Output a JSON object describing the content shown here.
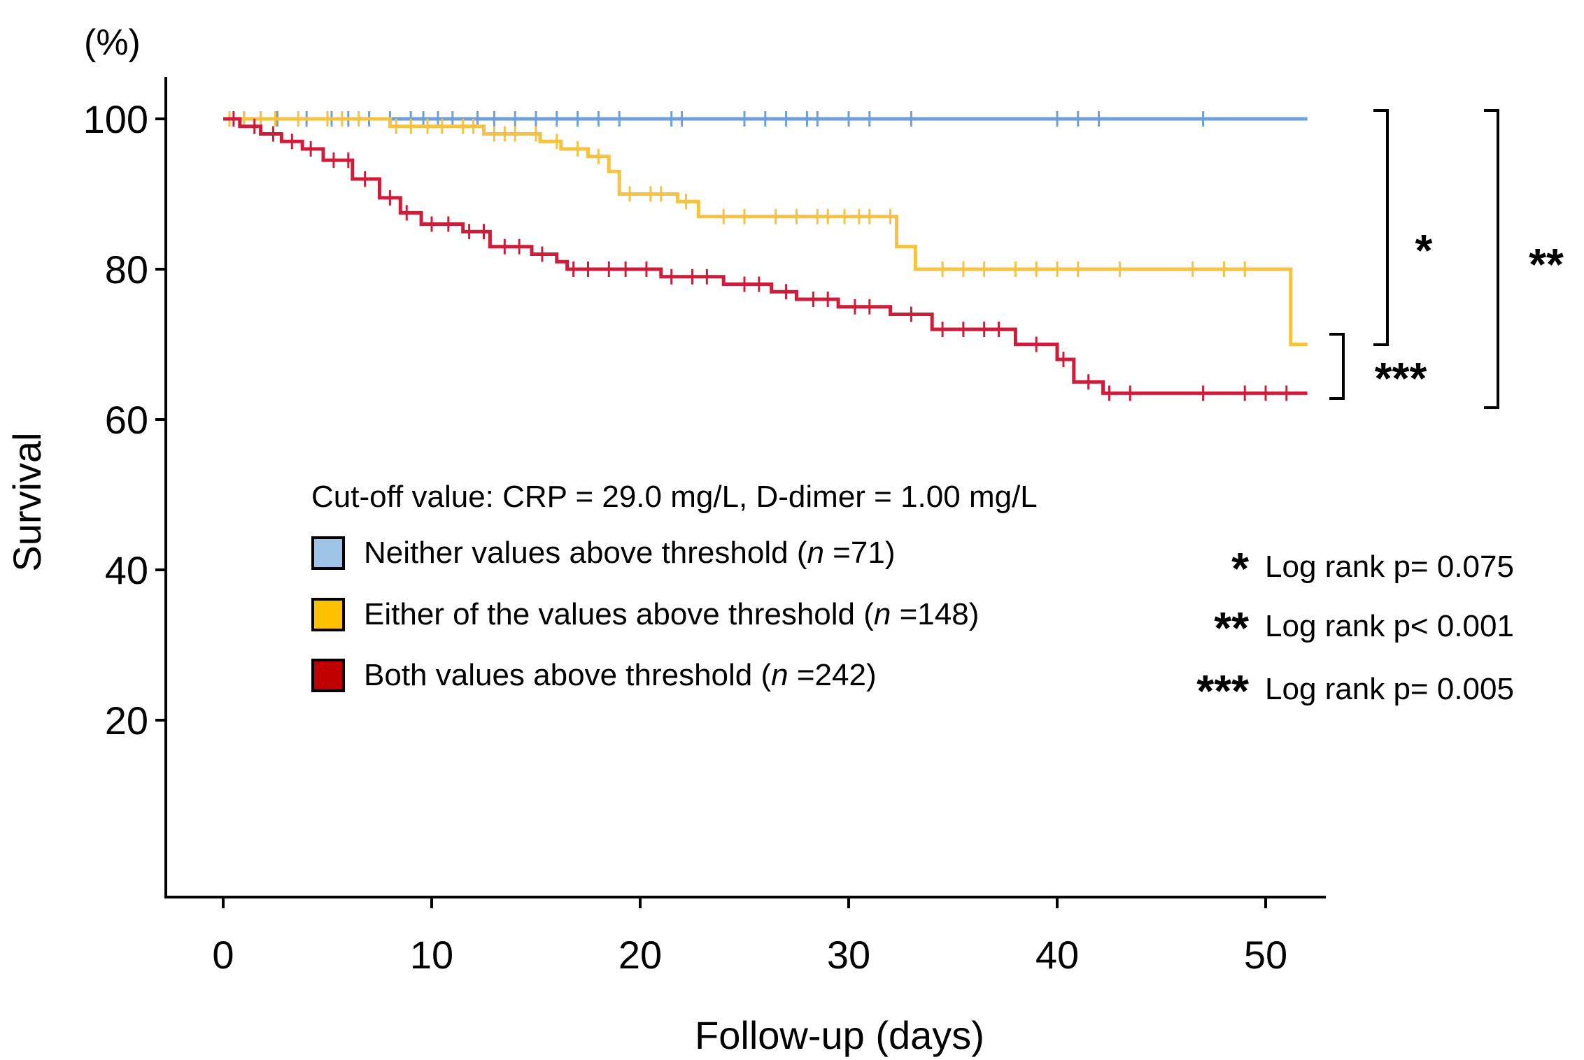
{
  "chart_data": {
    "type": "line",
    "title": "",
    "xlabel": "Follow-up (days)",
    "ylabel": "Survival",
    "y_unit": "(%)",
    "xlim": [
      0,
      52
    ],
    "ylim": [
      0,
      105
    ],
    "x_ticks": [
      {
        "value": 0,
        "label": "0"
      },
      {
        "value": 10,
        "label": "10"
      },
      {
        "value": 20,
        "label": "20"
      },
      {
        "value": 30,
        "label": "30"
      },
      {
        "value": 40,
        "label": "40"
      },
      {
        "value": 50,
        "label": "50"
      }
    ],
    "y_ticks": [
      {
        "value": 20,
        "label": "20"
      },
      {
        "value": 40,
        "label": "40"
      },
      {
        "value": 60,
        "label": "60"
      },
      {
        "value": 80,
        "label": "80"
      },
      {
        "value": 100,
        "label": "100"
      }
    ],
    "series": [
      {
        "name": "Neither values above threshold",
        "n_label": "71",
        "color": "#6e9fd8",
        "box_color": "#9dc3e6",
        "steps": [
          [
            0,
            100
          ],
          [
            52,
            100
          ]
        ],
        "censored": [
          1,
          1.8,
          2.6,
          4,
          5.2,
          6,
          7,
          8,
          9,
          9.6,
          10.3,
          11,
          12.2,
          13,
          14,
          15,
          16,
          17,
          18,
          19,
          21.5,
          22,
          25,
          26,
          27,
          28,
          28.5,
          30,
          31,
          33,
          40,
          41,
          42,
          47
        ]
      },
      {
        "name": "Either of the values above threshold",
        "n_label": "148",
        "color": "#f5c242",
        "box_color": "#ffc000",
        "steps": [
          [
            0,
            100
          ],
          [
            8,
            100
          ],
          [
            8,
            99
          ],
          [
            12.5,
            99
          ],
          [
            12.5,
            98
          ],
          [
            15.2,
            98
          ],
          [
            15.2,
            97
          ],
          [
            16.2,
            97
          ],
          [
            16.2,
            96
          ],
          [
            17.5,
            96
          ],
          [
            17.5,
            95
          ],
          [
            18.5,
            95
          ],
          [
            18.5,
            93
          ],
          [
            19,
            93
          ],
          [
            19,
            90
          ],
          [
            21.8,
            90
          ],
          [
            21.8,
            89
          ],
          [
            22.8,
            89
          ],
          [
            22.8,
            87
          ],
          [
            32.3,
            87
          ],
          [
            32.3,
            83
          ],
          [
            33.2,
            83
          ],
          [
            33.2,
            80
          ],
          [
            51.2,
            80
          ],
          [
            51.2,
            70
          ],
          [
            52,
            70
          ]
        ],
        "censored": [
          0.3,
          1,
          1.8,
          2.5,
          3.6,
          5,
          5.7,
          6.5,
          8.3,
          9,
          9.8,
          10.5,
          11.5,
          12,
          13,
          13.5,
          14,
          15,
          16,
          17,
          18,
          19.5,
          20.5,
          21,
          22.2,
          24,
          25,
          26.5,
          27.5,
          28.5,
          29,
          29.8,
          30.5,
          31,
          32,
          34.5,
          35.5,
          36.5,
          38,
          39,
          40,
          41,
          43,
          46.5,
          48,
          49
        ]
      },
      {
        "name": "Both values above threshold",
        "n_label": "242",
        "color": "#cc1e3a",
        "box_color": "#c00000",
        "steps": [
          [
            0,
            100
          ],
          [
            0.8,
            100
          ],
          [
            0.8,
            99
          ],
          [
            1.8,
            99
          ],
          [
            1.8,
            98
          ],
          [
            2.8,
            98
          ],
          [
            2.8,
            97
          ],
          [
            3.8,
            97
          ],
          [
            3.8,
            96
          ],
          [
            4.8,
            96
          ],
          [
            4.8,
            94.5
          ],
          [
            6.2,
            94.5
          ],
          [
            6.2,
            92
          ],
          [
            7.5,
            92
          ],
          [
            7.5,
            89.5
          ],
          [
            8.5,
            89.5
          ],
          [
            8.5,
            87.5
          ],
          [
            9.5,
            87.5
          ],
          [
            9.5,
            86
          ],
          [
            11.5,
            86
          ],
          [
            11.5,
            85
          ],
          [
            12.8,
            85
          ],
          [
            12.8,
            83
          ],
          [
            14.8,
            83
          ],
          [
            14.8,
            82
          ],
          [
            16,
            82
          ],
          [
            16,
            81
          ],
          [
            16.5,
            81
          ],
          [
            16.5,
            80
          ],
          [
            21,
            80
          ],
          [
            21,
            79
          ],
          [
            24,
            79
          ],
          [
            24,
            78
          ],
          [
            26.3,
            78
          ],
          [
            26.3,
            77
          ],
          [
            27.5,
            77
          ],
          [
            27.5,
            76
          ],
          [
            29.5,
            76
          ],
          [
            29.5,
            75
          ],
          [
            32,
            75
          ],
          [
            32,
            74
          ],
          [
            34,
            74
          ],
          [
            34,
            72
          ],
          [
            38,
            72
          ],
          [
            38,
            70
          ],
          [
            40,
            70
          ],
          [
            40,
            68
          ],
          [
            40.8,
            68
          ],
          [
            40.8,
            65
          ],
          [
            42.2,
            65
          ],
          [
            42.2,
            63.5
          ],
          [
            52,
            63.5
          ]
        ],
        "censored": [
          0.5,
          1.5,
          2.4,
          3.3,
          4.2,
          5.3,
          6,
          6.8,
          8,
          8.8,
          10,
          10.8,
          11.8,
          12.5,
          13.5,
          14.2,
          15.3,
          16.8,
          17.5,
          18.5,
          19.3,
          20.3,
          21.5,
          22.5,
          23.2,
          25,
          25.7,
          27,
          28.3,
          29,
          30.3,
          31,
          33,
          34.5,
          35.5,
          36.5,
          37.2,
          39,
          40.3,
          41.5,
          42.5,
          43.5,
          47,
          49,
          50,
          51
        ]
      }
    ],
    "legend": {
      "title": "Cut-off value: CRP = 29.0 mg/L, D-dimer = 1.00 mg/L",
      "n_prefix": "(",
      "n_symbol": "n",
      "n_eq": " =",
      "n_suffix": ")"
    },
    "comparisons": [
      {
        "stars": "*",
        "text": "Log rank p= 0.075"
      },
      {
        "stars": "**",
        "text": "Log rank p< 0.001"
      },
      {
        "stars": "***",
        "text": "Log rank p= 0.005"
      }
    ]
  }
}
